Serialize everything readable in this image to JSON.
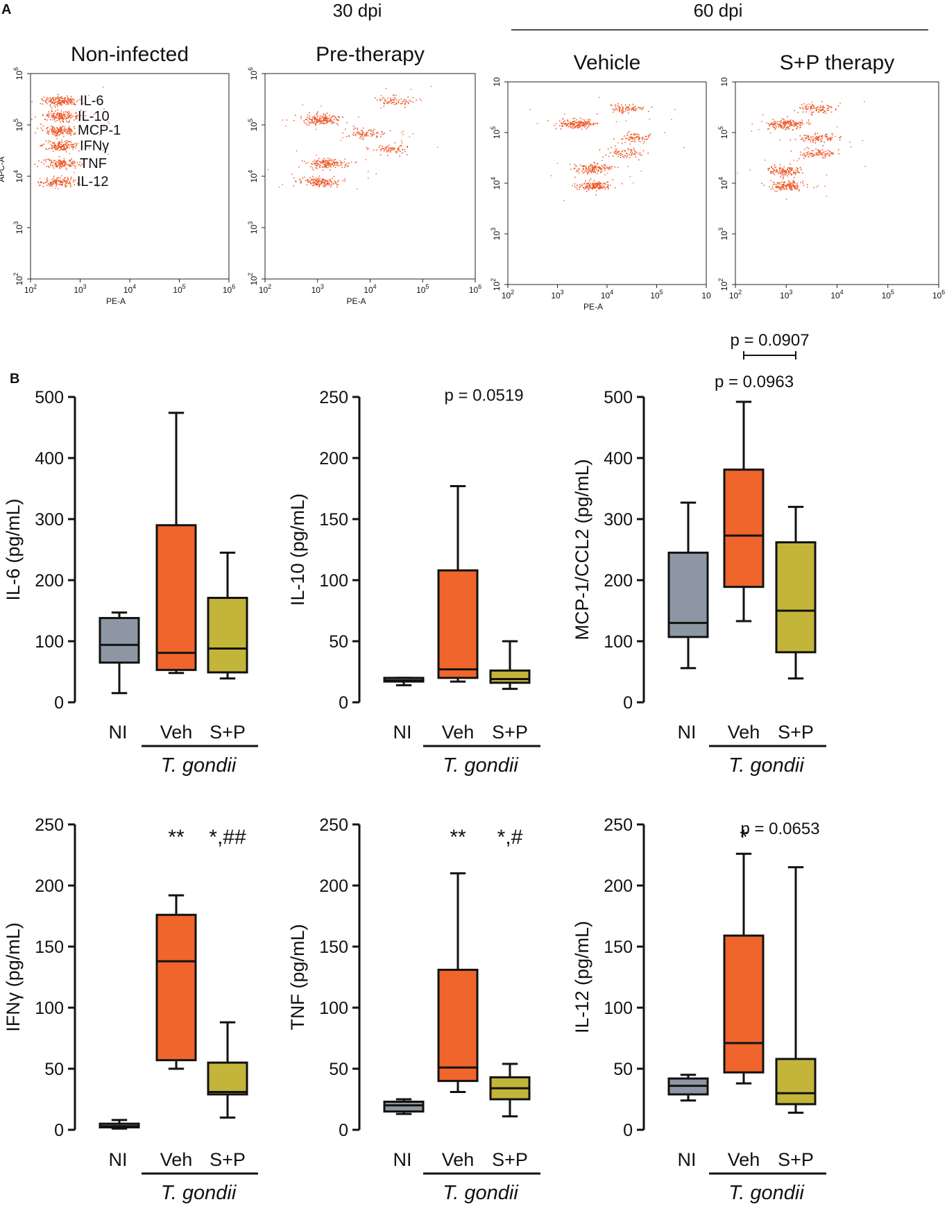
{
  "panel_a": {
    "letter": "A",
    "headers": [
      {
        "key": "h30",
        "text": "30 dpi"
      },
      {
        "key": "h60",
        "text": "60 dpi"
      }
    ]
  },
  "panel_b": {
    "letter": "B"
  },
  "colors": {
    "dots": "#ee5a2a",
    "NI": "#8c97a3",
    "Veh": "#f0652b",
    "S+P": "#c3b53a"
  },
  "chart_data": [
    {
      "type": "scatter",
      "panel": "A",
      "title": "Non-infected",
      "xlabel": "PE-A",
      "ylabel": "APC-A",
      "x_scale": "log",
      "y_scale": "log",
      "xlim": [
        100,
        1000000
      ],
      "ylim": [
        100,
        1000000
      ],
      "x_ticks": [
        {
          "v": 100,
          "e": "2"
        },
        {
          "v": 1000,
          "e": "3"
        },
        {
          "v": 10000,
          "e": "4"
        },
        {
          "v": 100000,
          "e": "5"
        },
        {
          "v": 1000000,
          "e": "6"
        }
      ],
      "y_ticks": [
        {
          "v": 100,
          "e": "2"
        },
        {
          "v": 1000,
          "e": "3"
        },
        {
          "v": 10000,
          "e": "4"
        },
        {
          "v": 100000,
          "e": "5"
        },
        {
          "v": 1000000,
          "e": "6"
        }
      ],
      "labels": [
        "IL-6",
        "IL-10",
        "MCP-1",
        "IFNγ",
        "TNF",
        "IL-12"
      ],
      "clusters": [
        {
          "x": 400,
          "y": 300000,
          "n": 160
        },
        {
          "x": 400,
          "y": 150000,
          "n": 160
        },
        {
          "x": 400,
          "y": 80000,
          "n": 150
        },
        {
          "x": 400,
          "y": 40000,
          "n": 150
        },
        {
          "x": 400,
          "y": 18000,
          "n": 140
        },
        {
          "x": 350,
          "y": 8000,
          "n": 130
        }
      ]
    },
    {
      "type": "scatter",
      "panel": "A",
      "title": "Pre-therapy",
      "xlabel": "PE-A",
      "ylabel": "",
      "x_scale": "log",
      "y_scale": "log",
      "xlim": [
        100,
        1000000
      ],
      "ylim": [
        100,
        1000000
      ],
      "x_ticks": [
        {
          "v": 100,
          "e": "2"
        },
        {
          "v": 1000,
          "e": "3"
        },
        {
          "v": 10000,
          "e": "4"
        },
        {
          "v": 100000,
          "e": "5"
        },
        {
          "v": 1000000,
          "e": "6"
        }
      ],
      "y_ticks": [
        {
          "v": 100,
          "e": "2"
        },
        {
          "v": 1000,
          "e": "3"
        },
        {
          "v": 10000,
          "e": "4"
        },
        {
          "v": 100000,
          "e": "5"
        },
        {
          "v": 1000000,
          "e": "6"
        }
      ],
      "clusters": [
        {
          "x": 1200,
          "y": 130000,
          "n": 170
        },
        {
          "x": 8000,
          "y": 70000,
          "n": 80
        },
        {
          "x": 28000,
          "y": 300000,
          "n": 70
        },
        {
          "x": 25000,
          "y": 35000,
          "n": 70
        },
        {
          "x": 1500,
          "y": 18000,
          "n": 150
        },
        {
          "x": 1000,
          "y": 8000,
          "n": 150
        }
      ]
    },
    {
      "type": "scatter",
      "panel": "A",
      "title": "Vehicle",
      "xlabel": "PE-A",
      "ylabel": "",
      "x_scale": "log",
      "y_scale": "log",
      "xlim": [
        100,
        1000000
      ],
      "ylim": [
        100,
        1000000
      ],
      "x_ticks": [
        {
          "v": 100,
          "e": "2"
        },
        {
          "v": 1000,
          "e": "3"
        },
        {
          "v": 10000,
          "e": "4"
        },
        {
          "v": 100000,
          "e": "5"
        },
        {
          "v": 1000000,
          "e": ""
        }
      ],
      "y_ticks": [
        {
          "v": 100,
          "e": "2"
        },
        {
          "v": 1000,
          "e": "3"
        },
        {
          "v": 10000,
          "e": "4"
        },
        {
          "v": 100000,
          "e": "5"
        },
        {
          "v": 1000000,
          "e": ""
        }
      ],
      "clusters": [
        {
          "x": 2500,
          "y": 150000,
          "n": 170
        },
        {
          "x": 25000,
          "y": 300000,
          "n": 80
        },
        {
          "x": 35000,
          "y": 80000,
          "n": 70
        },
        {
          "x": 22000,
          "y": 40000,
          "n": 70
        },
        {
          "x": 5000,
          "y": 20000,
          "n": 130
        },
        {
          "x": 5000,
          "y": 9000,
          "n": 150
        }
      ]
    },
    {
      "type": "scatter",
      "panel": "A",
      "title": "S+P therapy",
      "xlabel": "",
      "ylabel": "",
      "x_scale": "log",
      "y_scale": "log",
      "xlim": [
        100,
        1000000
      ],
      "ylim": [
        100,
        1000000
      ],
      "x_ticks": [
        {
          "v": 100,
          "e": "2"
        },
        {
          "v": 1000,
          "e": "3"
        },
        {
          "v": 10000,
          "e": "4"
        },
        {
          "v": 100000,
          "e": "5"
        },
        {
          "v": 1000000,
          "e": "6"
        }
      ],
      "y_ticks": [
        {
          "v": 100,
          "e": "2"
        },
        {
          "v": 1000,
          "e": "3"
        },
        {
          "v": 10000,
          "e": "4"
        },
        {
          "v": 100000,
          "e": "5"
        },
        {
          "v": 1000000,
          "e": ""
        }
      ],
      "clusters": [
        {
          "x": 1000,
          "y": 150000,
          "n": 170
        },
        {
          "x": 3800,
          "y": 300000,
          "n": 90
        },
        {
          "x": 4000,
          "y": 80000,
          "n": 90
        },
        {
          "x": 4000,
          "y": 40000,
          "n": 90
        },
        {
          "x": 1000,
          "y": 18000,
          "n": 130
        },
        {
          "x": 1000,
          "y": 9000,
          "n": 140
        }
      ]
    },
    {
      "type": "box",
      "panel": "B",
      "ylabel": "IL-6 (pg/mL)",
      "ylim": [
        0,
        500
      ],
      "yticks": [
        0,
        100,
        200,
        300,
        400,
        500
      ],
      "categories": [
        "NI",
        "Veh",
        "S+P"
      ],
      "group_label": "T. gondii",
      "boxes": [
        {
          "min": 15,
          "q1": 65,
          "median": 94,
          "q3": 138,
          "max": 147
        },
        {
          "min": 48,
          "q1": 53,
          "median": 81,
          "q3": 290,
          "max": 474
        },
        {
          "min": 39,
          "q1": 49,
          "median": 88,
          "q3": 171,
          "max": 245
        }
      ],
      "annotations": []
    },
    {
      "type": "box",
      "panel": "B",
      "ylabel": "IL-10 (pg/mL)",
      "ylim": [
        0,
        250
      ],
      "yticks": [
        0,
        50,
        100,
        150,
        200,
        250
      ],
      "categories": [
        "NI",
        "Veh",
        "S+P"
      ],
      "group_label": "T. gondii",
      "boxes": [
        {
          "min": 14,
          "q1": 17,
          "median": 18,
          "q3": 20,
          "max": 20
        },
        {
          "min": 17,
          "q1": 20,
          "median": 27,
          "q3": 108,
          "max": 177
        },
        {
          "min": 11,
          "q1": 16,
          "median": 19,
          "q3": 26,
          "max": 50
        }
      ],
      "annotations": [
        {
          "text": "p = 0.0519",
          "at": 1.5,
          "y": 247
        }
      ]
    },
    {
      "type": "box",
      "panel": "B",
      "ylabel": "MCP-1/CCL2 (pg/mL)",
      "ylim": [
        0,
        500
      ],
      "yticks": [
        0,
        100,
        200,
        300,
        400,
        500
      ],
      "categories": [
        "NI",
        "Veh",
        "S+P"
      ],
      "group_label": "T. gondii",
      "boxes": [
        {
          "min": 56,
          "q1": 107,
          "median": 130,
          "q3": 245,
          "max": 327
        },
        {
          "min": 133,
          "q1": 189,
          "median": 273,
          "q3": 381,
          "max": 492
        },
        {
          "min": 39,
          "q1": 82,
          "median": 150,
          "q3": 262,
          "max": 320
        }
      ],
      "annotations": [
        {
          "text": "p = 0.0963",
          "at": 1.2,
          "y": 516
        }
      ],
      "bracket": {
        "text": "p = 0.0907",
        "from": 1,
        "to": 2,
        "y": 572
      }
    },
    {
      "type": "box",
      "panel": "B",
      "ylabel": "IFNγ (pg/mL)",
      "ylim": [
        0,
        250
      ],
      "yticks": [
        0,
        50,
        100,
        150,
        200,
        250
      ],
      "categories": [
        "NI",
        "Veh",
        "S+P"
      ],
      "group_label": "T. gondii",
      "boxes": [
        {
          "min": 1,
          "q1": 2,
          "median": 3,
          "q3": 5,
          "max": 8
        },
        {
          "min": 50,
          "q1": 57,
          "median": 138,
          "q3": 176,
          "max": 192
        },
        {
          "min": 10,
          "q1": 29,
          "median": 31,
          "q3": 55,
          "max": 88
        }
      ],
      "annotations": [
        {
          "text": "**",
          "at": 1,
          "y": 234,
          "kind": "sig"
        },
        {
          "text": "*,##",
          "at": 2,
          "y": 234,
          "kind": "sig"
        }
      ]
    },
    {
      "type": "box",
      "panel": "B",
      "ylabel": "TNF (pg/mL)",
      "ylim": [
        0,
        250
      ],
      "yticks": [
        0,
        50,
        100,
        150,
        200,
        250
      ],
      "categories": [
        "NI",
        "Veh",
        "S+P"
      ],
      "group_label": "T. gondii",
      "boxes": [
        {
          "min": 13,
          "q1": 15,
          "median": 20,
          "q3": 23,
          "max": 25
        },
        {
          "min": 31,
          "q1": 40,
          "median": 51,
          "q3": 131,
          "max": 210
        },
        {
          "min": 11,
          "q1": 25,
          "median": 34,
          "q3": 43,
          "max": 54
        }
      ],
      "annotations": [
        {
          "text": "**",
          "at": 1,
          "y": 234,
          "kind": "sig"
        },
        {
          "text": "*,#",
          "at": 2,
          "y": 234,
          "kind": "sig"
        }
      ]
    },
    {
      "type": "box",
      "panel": "B",
      "ylabel": "IL-12 (pg/mL)",
      "ylim": [
        0,
        250
      ],
      "yticks": [
        0,
        50,
        100,
        150,
        200,
        250
      ],
      "categories": [
        "NI",
        "Veh",
        "S+P"
      ],
      "group_label": "T. gondii",
      "boxes": [
        {
          "min": 24,
          "q1": 29,
          "median": 36,
          "q3": 42,
          "max": 45
        },
        {
          "min": 38,
          "q1": 47,
          "median": 71,
          "q3": 159,
          "max": 226
        },
        {
          "min": 14,
          "q1": 21,
          "median": 30,
          "q3": 58,
          "max": 215
        }
      ],
      "annotations": [
        {
          "text": "*",
          "at": 1,
          "y": 234,
          "kind": "sig"
        },
        {
          "text": "p = 0.0653",
          "at": 1.7,
          "y": 242
        }
      ]
    }
  ]
}
